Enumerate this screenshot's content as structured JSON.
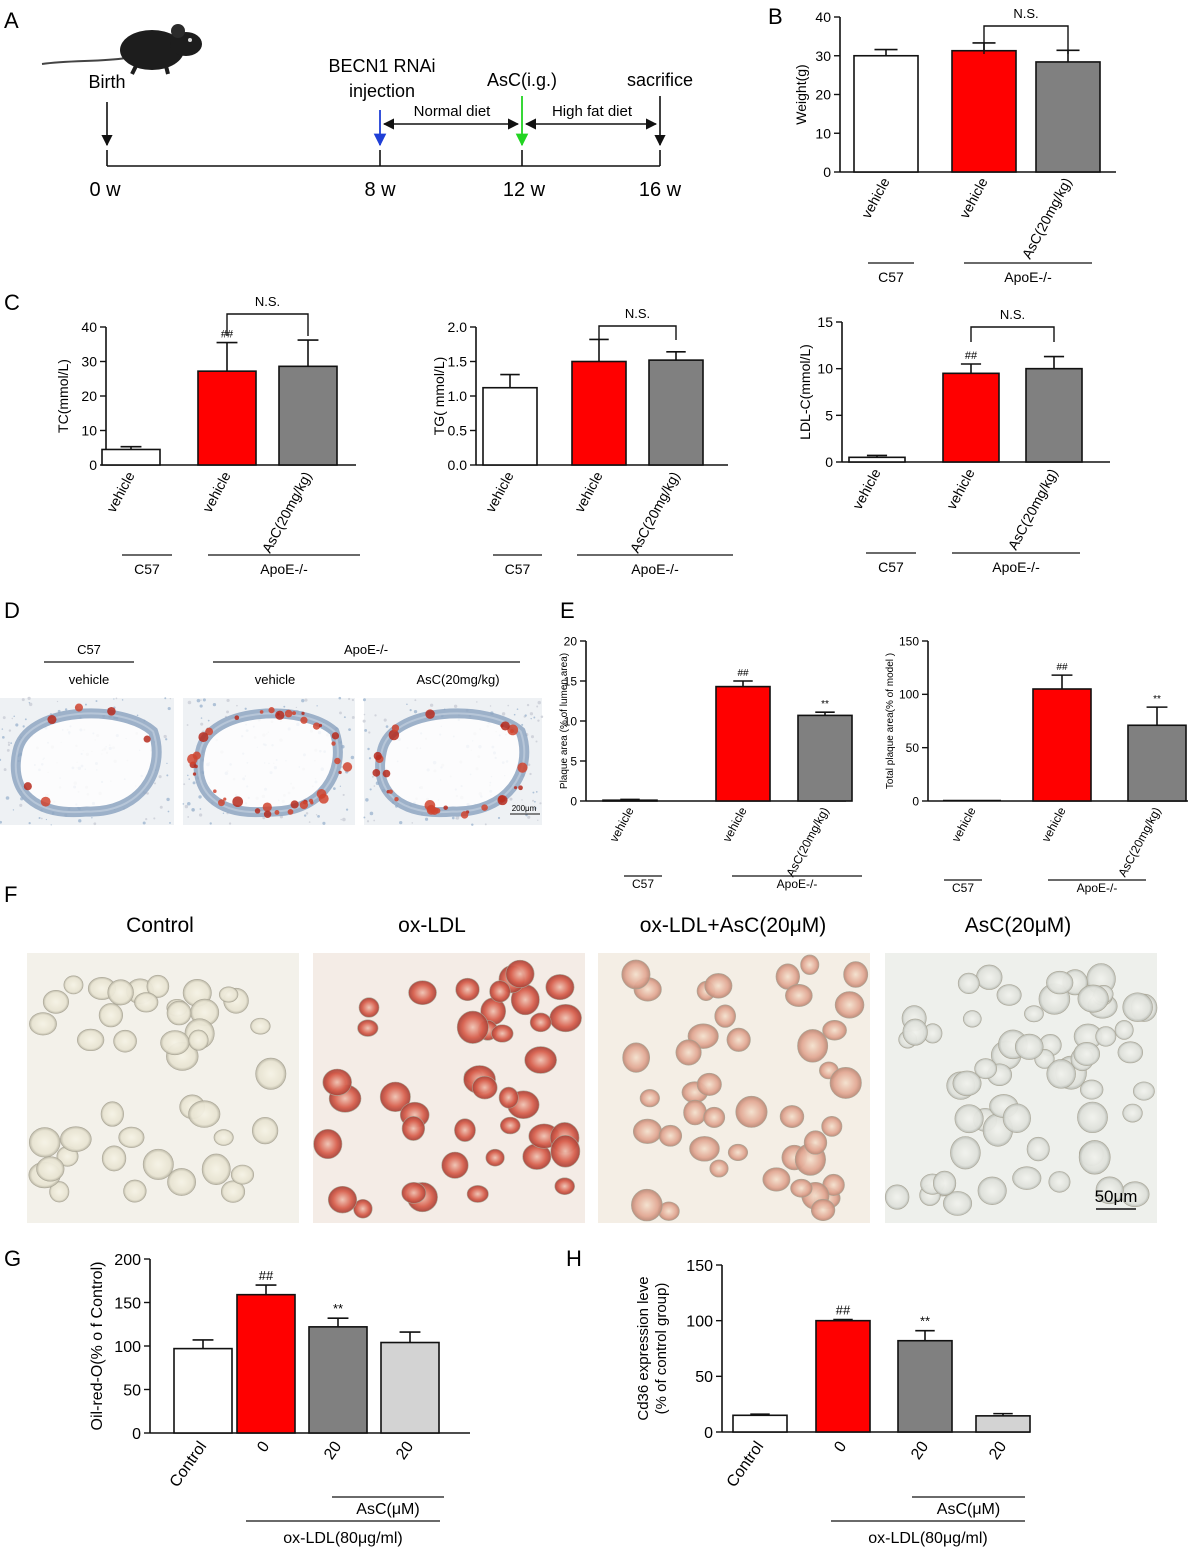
{
  "panel_letters": [
    "A",
    "B",
    "C",
    "D",
    "E",
    "F",
    "G",
    "H"
  ],
  "timeline": {
    "events": [
      {
        "label": "Birth",
        "week": "0 w"
      },
      {
        "label_lines": [
          "BECN1 RNAi",
          "injection"
        ],
        "week": "8 w",
        "arrow_color": "#1f3fd6"
      },
      {
        "label": "AsC(i.g.)",
        "week": "12 w",
        "arrow_color": "#22d422"
      },
      {
        "label": "sacrifice",
        "week": "16 w"
      }
    ],
    "diets": [
      "Normal diet",
      "High fat diet"
    ]
  },
  "colors": {
    "white": "#ffffff",
    "red": "#ff0000",
    "gray": "#808080",
    "light_gray": "#d3d3d3",
    "border": "#111111"
  },
  "chart_data": [
    {
      "panel": "B",
      "type": "bar",
      "ylabel": "Weight(g)",
      "ylim": [
        0,
        40
      ],
      "yticks": [
        0,
        10,
        20,
        30,
        40
      ],
      "categories": [
        "vehicle",
        "vehicle",
        "AsC(20mg/kg)"
      ],
      "values": [
        30,
        31.3,
        28.4
      ],
      "errors": [
        1.6,
        2,
        3
      ],
      "colors": [
        "#ffffff",
        "#ff0000",
        "#808080"
      ],
      "markers": [
        "",
        "",
        ""
      ],
      "groups": [
        {
          "label": "C57",
          "bars": [
            0,
            0
          ]
        },
        {
          "label": "ApoE-/-",
          "bars": [
            1,
            2
          ]
        }
      ],
      "brackets": [
        {
          "from": 1,
          "to": 2,
          "label": "N.S."
        }
      ]
    },
    {
      "panel": "C1",
      "type": "bar",
      "ylabel": "TC(mmol/L)",
      "ylim": [
        0,
        40
      ],
      "yticks": [
        0,
        10,
        20,
        30,
        40
      ],
      "categories": [
        "vehicle",
        "vehicle",
        "AsC(20mg/kg)"
      ],
      "values": [
        4.5,
        27.2,
        28.6
      ],
      "errors": [
        0.8,
        8.3,
        7.6
      ],
      "colors": [
        "#ffffff",
        "#ff0000",
        "#808080"
      ],
      "markers": [
        "",
        "##",
        ""
      ],
      "groups": [
        {
          "label": "C57",
          "bars": [
            0,
            0
          ]
        },
        {
          "label": "ApoE-/-",
          "bars": [
            1,
            2
          ]
        }
      ],
      "brackets": [
        {
          "from": 1,
          "to": 2,
          "label": "N.S."
        }
      ]
    },
    {
      "panel": "C2",
      "type": "bar",
      "ylabel": "TG( mmol/L)",
      "ylim": [
        0,
        2.0
      ],
      "yticks": [
        "0.0",
        "0.5",
        "1.0",
        "1.5",
        "2.0"
      ],
      "categories": [
        "vehicle",
        "vehicle",
        "AsC(20mg/kg)"
      ],
      "values": [
        1.12,
        1.5,
        1.52
      ],
      "errors": [
        0.19,
        0.32,
        0.12
      ],
      "colors": [
        "#ffffff",
        "#ff0000",
        "#808080"
      ],
      "markers": [
        "",
        "",
        ""
      ],
      "groups": [
        {
          "label": "C57",
          "bars": [
            0,
            0
          ]
        },
        {
          "label": "ApoE-/-",
          "bars": [
            1,
            2
          ]
        }
      ],
      "brackets": [
        {
          "from": 1,
          "to": 2,
          "label": "N.S."
        }
      ]
    },
    {
      "panel": "C3",
      "type": "bar",
      "ylabel": "LDL-C(mmol/L)",
      "ylim": [
        0,
        15
      ],
      "yticks": [
        0,
        5,
        10,
        15
      ],
      "categories": [
        "vehicle",
        "vehicle",
        "AsC(20mg/kg)"
      ],
      "values": [
        0.5,
        9.5,
        10
      ],
      "errors": [
        0.2,
        1,
        1.3
      ],
      "colors": [
        "#ffffff",
        "#ff0000",
        "#808080"
      ],
      "markers": [
        "",
        "##",
        ""
      ],
      "groups": [
        {
          "label": "C57",
          "bars": [
            0,
            0
          ]
        },
        {
          "label": "ApoE-/-",
          "bars": [
            1,
            2
          ]
        }
      ],
      "brackets": [
        {
          "from": 1,
          "to": 2,
          "label": "N.S."
        }
      ]
    },
    {
      "panel": "E1",
      "type": "bar",
      "ylabel": "Plaque area (% of lumen area)",
      "ylim": [
        0,
        20
      ],
      "yticks": [
        0,
        5,
        10,
        15,
        20
      ],
      "categories": [
        "vehicle",
        "vehicle",
        "AsC(20mg/kg)"
      ],
      "values": [
        0.1,
        14.3,
        10.7
      ],
      "errors": [
        0.1,
        0.7,
        0.4
      ],
      "colors": [
        "#ffffff",
        "#ff0000",
        "#808080"
      ],
      "markers": [
        "",
        "##",
        "**"
      ],
      "groups": [
        {
          "label": "C57",
          "bars": [
            0,
            0
          ]
        },
        {
          "label": "ApoE-/-",
          "bars": [
            1,
            2
          ]
        }
      ]
    },
    {
      "panel": "E2",
      "type": "bar",
      "ylabel": "Total plaque area(% of model )",
      "ylim": [
        0,
        150
      ],
      "yticks": [
        0,
        50,
        100,
        150
      ],
      "categories": [
        "vehicle",
        "vehicle",
        "AsC(20mg/kg)"
      ],
      "values": [
        0,
        105,
        71
      ],
      "errors": [
        0,
        13,
        17
      ],
      "colors": [
        "#ffffff",
        "#ff0000",
        "#808080"
      ],
      "markers": [
        "",
        "##",
        "**"
      ],
      "groups": [
        {
          "label": "C57",
          "bars": [
            0,
            0
          ]
        },
        {
          "label": "ApoE-/-",
          "bars": [
            1,
            2
          ]
        }
      ]
    },
    {
      "panel": "G",
      "type": "bar",
      "ylabel": "Oil-red-O(% o f Control)",
      "ylim": [
        0,
        200
      ],
      "yticks": [
        0,
        50,
        100,
        150,
        200
      ],
      "categories": [
        "Control",
        "0",
        "20",
        "20"
      ],
      "values": [
        97,
        159,
        122,
        104
      ],
      "errors": [
        10,
        11,
        10,
        12
      ],
      "colors": [
        "#ffffff",
        "#ff0000",
        "#808080",
        "#d3d3d3"
      ],
      "markers": [
        "",
        "##",
        "**",
        ""
      ],
      "groups": [
        {
          "label": "AsC(μM)",
          "bars": [
            2,
            3
          ]
        },
        {
          "label": "ox-LDL(80μg/ml)",
          "bars": [
            1,
            3
          ]
        }
      ]
    },
    {
      "panel": "H",
      "type": "bar",
      "ylabel_lines": [
        "Cd36 expression leve",
        "(% of control group)"
      ],
      "ylim": [
        0,
        150
      ],
      "yticks": [
        0,
        50,
        100,
        150
      ],
      "categories": [
        "Control",
        "0",
        "20",
        "20"
      ],
      "values": [
        15,
        100,
        82,
        14.5
      ],
      "errors": [
        1,
        1,
        9,
        2
      ],
      "colors": [
        "#ffffff",
        "#ff0000",
        "#808080",
        "#d3d3d3"
      ],
      "markers": [
        "",
        "##",
        "**",
        ""
      ],
      "groups": [
        {
          "label": "AsC(μM)",
          "bars": [
            2,
            3
          ]
        },
        {
          "label": "ox-LDL(80μg/ml)",
          "bars": [
            1,
            3
          ]
        }
      ]
    }
  ],
  "panel_D": {
    "group_labels": [
      "C57",
      "ApoE-/-"
    ],
    "column_labels": [
      "vehicle",
      "vehicle",
      "AsC(20mg/kg)"
    ],
    "scale_bar": "200μm"
  },
  "panel_F": {
    "titles": [
      "Control",
      "ox-LDL",
      "ox-LDL+AsC(20μM)",
      "AsC(20μM)"
    ],
    "scale_bar": "50μm"
  }
}
